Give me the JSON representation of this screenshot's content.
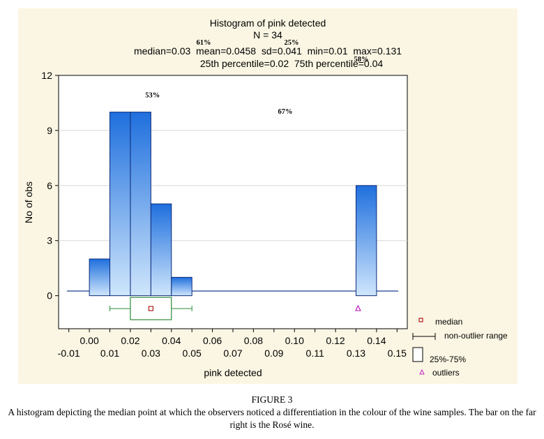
{
  "chart_data": {
    "type": "bar",
    "title": "Histogram of pink detected",
    "subtitle_n": "N = 34",
    "stats_line1": "median=0.03  mean=0.0458  sd=0.041  min=0.01  max=0.131",
    "stats_line2": "25th percentile=0.02  75th percentile=0.04",
    "xlabel": "pink detected",
    "ylabel": "No of obs",
    "xlim": [
      -0.015,
      0.155
    ],
    "ylim": [
      -1.8,
      12
    ],
    "yticks": [
      "0",
      "3",
      "6",
      "9",
      "12"
    ],
    "ytick_values": [
      0,
      3,
      6,
      9,
      12
    ],
    "xticks_upper": [
      "0.00",
      "0.02",
      "0.04",
      "0.06",
      "0.08",
      "0.10",
      "0.12",
      "0.14"
    ],
    "xticks_upper_values": [
      0.0,
      0.02,
      0.04,
      0.06,
      0.08,
      0.1,
      0.12,
      0.14
    ],
    "xticks_lower": [
      "-0.01",
      "0.01",
      "0.03",
      "0.05",
      "0.07",
      "0.09",
      "0.11",
      "0.13",
      "0.15"
    ],
    "xticks_lower_values": [
      -0.01,
      0.01,
      0.03,
      0.05,
      0.07,
      0.09,
      0.11,
      0.13,
      0.15
    ],
    "bins": [
      {
        "start": 0.0,
        "end": 0.01,
        "count": 2
      },
      {
        "start": 0.01,
        "end": 0.02,
        "count": 10
      },
      {
        "start": 0.02,
        "end": 0.03,
        "count": 10
      },
      {
        "start": 0.03,
        "end": 0.04,
        "count": 5
      },
      {
        "start": 0.04,
        "end": 0.05,
        "count": 1
      },
      {
        "start": 0.13,
        "end": 0.14,
        "count": 6
      }
    ],
    "boxplot": {
      "median": 0.03,
      "q1": 0.02,
      "q3": 0.04,
      "whisker_low": 0.01,
      "whisker_high": 0.05,
      "outliers": [
        0.131
      ],
      "y": -0.7
    },
    "legend": {
      "median": "median",
      "range": "non-outlier range",
      "box": "25%-75%",
      "outliers": "outliers"
    },
    "annotations": [
      {
        "text": "61%",
        "x": 0.0,
        "y": 0.0
      },
      {
        "text": "25%",
        "x": 0.0,
        "y": 0.0
      },
      {
        "text": "58%",
        "x": 0.0,
        "y": 0.0
      },
      {
        "text": "53%",
        "x": 0.0308,
        "y": 10.8
      },
      {
        "text": "67%",
        "x": 0.0955,
        "y": 9.9
      }
    ],
    "colors": {
      "bar_top": "#1f6fdd",
      "bar_bottom": "#cfe6fc",
      "bar_stroke": "#0a2a7a",
      "box": "#2e8b3a",
      "median": "#b11d1d",
      "outlier": "#c024c0",
      "panel": "#fbf6e3"
    }
  },
  "caption": {
    "title": "FIGURE 3",
    "text": "A histogram depicting the median point at which the observers noticed a differentiation in the colour of the wine samples. The bar on the far right is the Rosé wine."
  }
}
